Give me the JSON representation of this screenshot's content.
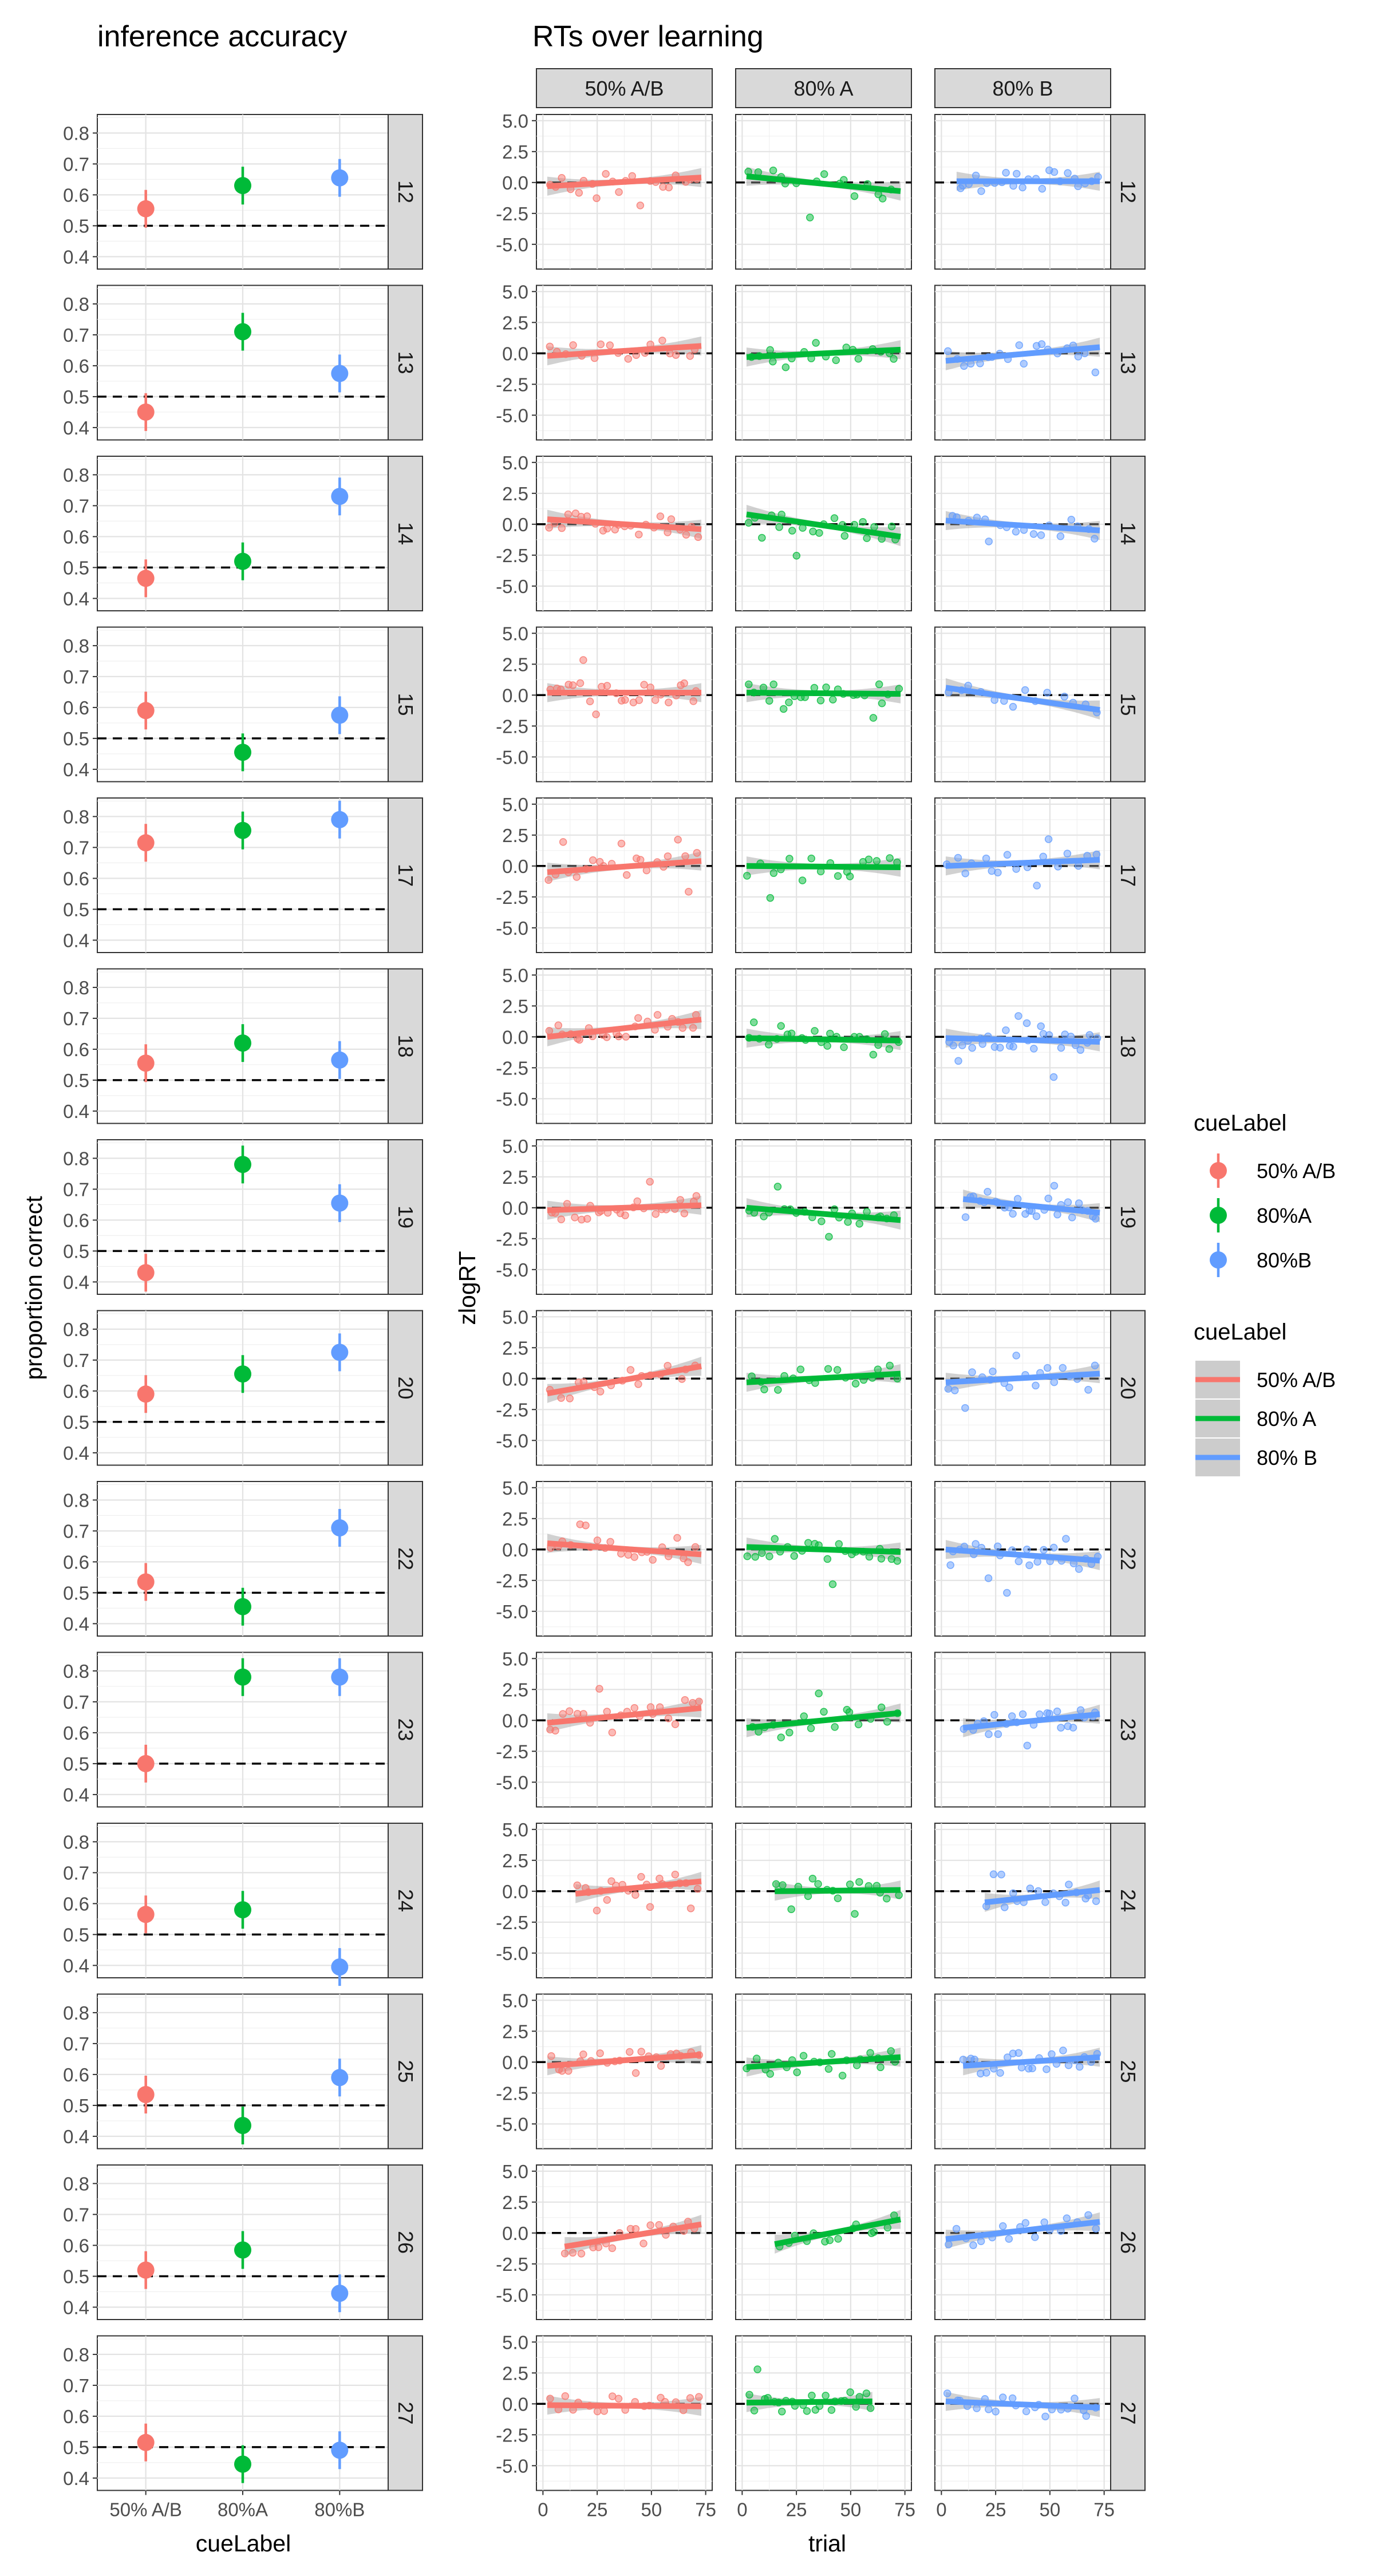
{
  "titles": {
    "left": "inference accuracy",
    "right": "RTs over learning"
  },
  "axes": {
    "left_xlabel": "cueLabel",
    "left_ylabel": "proportion correct",
    "right_xlabel": "trial",
    "right_ylabel": "zlogRT"
  },
  "legend_points": {
    "title": "cueLabel",
    "items": [
      {
        "label": "50% A/B",
        "color": "#F8766D"
      },
      {
        "label": "80%A",
        "color": "#00BA38"
      },
      {
        "label": "80%B",
        "color": "#619CFF"
      }
    ]
  },
  "legend_lines": {
    "title": "cueLabel",
    "items": [
      {
        "label": "50% A/B",
        "color": "#F8766D"
      },
      {
        "label": "80% A",
        "color": "#00BA38"
      },
      {
        "label": "80% B",
        "color": "#619CFF"
      }
    ]
  },
  "chart_data": [
    {
      "type": "scatter",
      "title": "inference accuracy",
      "xlabel": "cueLabel",
      "ylabel": "proportion correct",
      "categories": [
        "50% A/B",
        "80%A",
        "80%B"
      ],
      "yticks": [
        "0.4",
        "0.5",
        "0.6",
        "0.7",
        "0.8"
      ],
      "ylim": [
        0.36,
        0.86
      ],
      "reference_line": 0.5,
      "facets": [
        "12",
        "13",
        "14",
        "15",
        "17",
        "18",
        "19",
        "20",
        "22",
        "23",
        "24",
        "25",
        "26",
        "27"
      ],
      "series": [
        {
          "name": "50% A/B",
          "values": [
            0.555,
            0.45,
            0.465,
            0.59,
            0.715,
            0.555,
            0.43,
            0.59,
            0.535,
            0.5,
            0.565,
            0.535,
            0.52,
            0.515
          ]
        },
        {
          "name": "80%A",
          "values": [
            0.63,
            0.71,
            0.52,
            0.455,
            0.755,
            0.62,
            0.78,
            0.655,
            0.455,
            0.78,
            0.58,
            0.435,
            0.585,
            0.445
          ]
        },
        {
          "name": "80%B",
          "values": [
            0.655,
            0.575,
            0.73,
            0.575,
            0.79,
            0.565,
            0.655,
            0.725,
            0.71,
            0.78,
            0.395,
            0.59,
            0.445,
            0.49
          ]
        }
      ]
    },
    {
      "type": "line",
      "title": "RTs over learning",
      "xlabel": "trial",
      "ylabel": "zlogRT",
      "columns": [
        "50% A/B",
        "80% A",
        "80% B"
      ],
      "xticks": [
        "0",
        "25",
        "50",
        "75"
      ],
      "xlim": [
        -3,
        78
      ],
      "yticks": [
        "5.0",
        "2.5",
        "0.0",
        "-2.5",
        "-5.0"
      ],
      "ylim": [
        -7,
        5.5
      ],
      "reference_line": 0,
      "facets": [
        "12",
        "13",
        "14",
        "15",
        "17",
        "18",
        "19",
        "20",
        "22",
        "23",
        "24",
        "25",
        "26",
        "27"
      ],
      "fit_lines": [
        [
          [
            [
              2,
              -0.3
            ],
            [
              73,
              0.4
            ]
          ],
          [
            [
              2,
              0.5
            ],
            [
              73,
              -0.7
            ]
          ],
          [
            [
              7,
              0.1
            ],
            [
              73,
              0.1
            ]
          ]
        ],
        [
          [
            [
              2,
              -0.2
            ],
            [
              73,
              0.6
            ]
          ],
          [
            [
              2,
              -0.3
            ],
            [
              73,
              0.3
            ]
          ],
          [
            [
              2,
              -0.6
            ],
            [
              73,
              0.5
            ]
          ]
        ],
        [
          [
            [
              2,
              0.4
            ],
            [
              73,
              -0.4
            ]
          ],
          [
            [
              2,
              0.8
            ],
            [
              73,
              -1.0
            ]
          ],
          [
            [
              2,
              0.3
            ],
            [
              73,
              -0.5
            ]
          ]
        ],
        [
          [
            [
              2,
              0.2
            ],
            [
              73,
              0.2
            ]
          ],
          [
            [
              2,
              0.2
            ],
            [
              73,
              0.1
            ]
          ],
          [
            [
              2,
              0.6
            ],
            [
              73,
              -1.2
            ]
          ]
        ],
        [
          [
            [
              2,
              -0.5
            ],
            [
              73,
              0.4
            ]
          ],
          [
            [
              2,
              0.0
            ],
            [
              73,
              -0.1
            ]
          ],
          [
            [
              2,
              0.0
            ],
            [
              73,
              0.5
            ]
          ]
        ],
        [
          [
            [
              2,
              0.0
            ],
            [
              73,
              1.4
            ]
          ],
          [
            [
              2,
              -0.1
            ],
            [
              73,
              -0.3
            ]
          ],
          [
            [
              2,
              -0.1
            ],
            [
              73,
              -0.4
            ]
          ]
        ],
        [
          [
            [
              2,
              -0.2
            ],
            [
              73,
              0.2
            ]
          ],
          [
            [
              2,
              0.0
            ],
            [
              73,
              -1.0
            ]
          ],
          [
            [
              10,
              0.7
            ],
            [
              73,
              -0.4
            ]
          ]
        ],
        [
          [
            [
              2,
              -1.2
            ],
            [
              73,
              1.0
            ]
          ],
          [
            [
              2,
              -0.3
            ],
            [
              73,
              0.4
            ]
          ],
          [
            [
              2,
              -0.3
            ],
            [
              73,
              0.4
            ]
          ]
        ],
        [
          [
            [
              2,
              0.5
            ],
            [
              73,
              -0.4
            ]
          ],
          [
            [
              2,
              0.2
            ],
            [
              73,
              -0.2
            ]
          ],
          [
            [
              2,
              0.0
            ],
            [
              73,
              -0.9
            ]
          ]
        ],
        [
          [
            [
              2,
              -0.2
            ],
            [
              73,
              1.0
            ]
          ],
          [
            [
              2,
              -0.6
            ],
            [
              73,
              0.6
            ]
          ],
          [
            [
              10,
              -0.6
            ],
            [
              73,
              0.5
            ]
          ]
        ],
        [
          [
            [
              15,
              -0.2
            ],
            [
              73,
              0.8
            ]
          ],
          [
            [
              15,
              0.0
            ],
            [
              73,
              0.1
            ]
          ],
          [
            [
              20,
              -0.9
            ],
            [
              73,
              0.1
            ]
          ]
        ],
        [
          [
            [
              2,
              -0.3
            ],
            [
              73,
              0.6
            ]
          ],
          [
            [
              2,
              -0.4
            ],
            [
              73,
              0.4
            ]
          ],
          [
            [
              10,
              -0.3
            ],
            [
              73,
              0.4
            ]
          ]
        ],
        [
          [
            [
              10,
              -1.1
            ],
            [
              73,
              0.7
            ]
          ],
          [
            [
              15,
              -0.9
            ],
            [
              73,
              1.1
            ]
          ],
          [
            [
              2,
              -0.5
            ],
            [
              73,
              0.9
            ]
          ]
        ],
        [
          [
            [
              2,
              -0.1
            ],
            [
              73,
              -0.2
            ]
          ],
          [
            [
              2,
              0.1
            ],
            [
              60,
              0.2
            ]
          ],
          [
            [
              2,
              0.2
            ],
            [
              73,
              -0.3
            ]
          ]
        ]
      ],
      "point_counts": [
        [
          22,
          16,
          24
        ],
        [
          18,
          18,
          20
        ],
        [
          24,
          22,
          18
        ],
        [
          26,
          24,
          14
        ],
        [
          22,
          18,
          18
        ],
        [
          24,
          24,
          30
        ],
        [
          26,
          22,
          28
        ],
        [
          18,
          18,
          20
        ],
        [
          22,
          24,
          26
        ],
        [
          22,
          18,
          24
        ],
        [
          22,
          18,
          18
        ],
        [
          22,
          22,
          24
        ],
        [
          18,
          14,
          18
        ],
        [
          20,
          26,
          22
        ]
      ]
    }
  ]
}
